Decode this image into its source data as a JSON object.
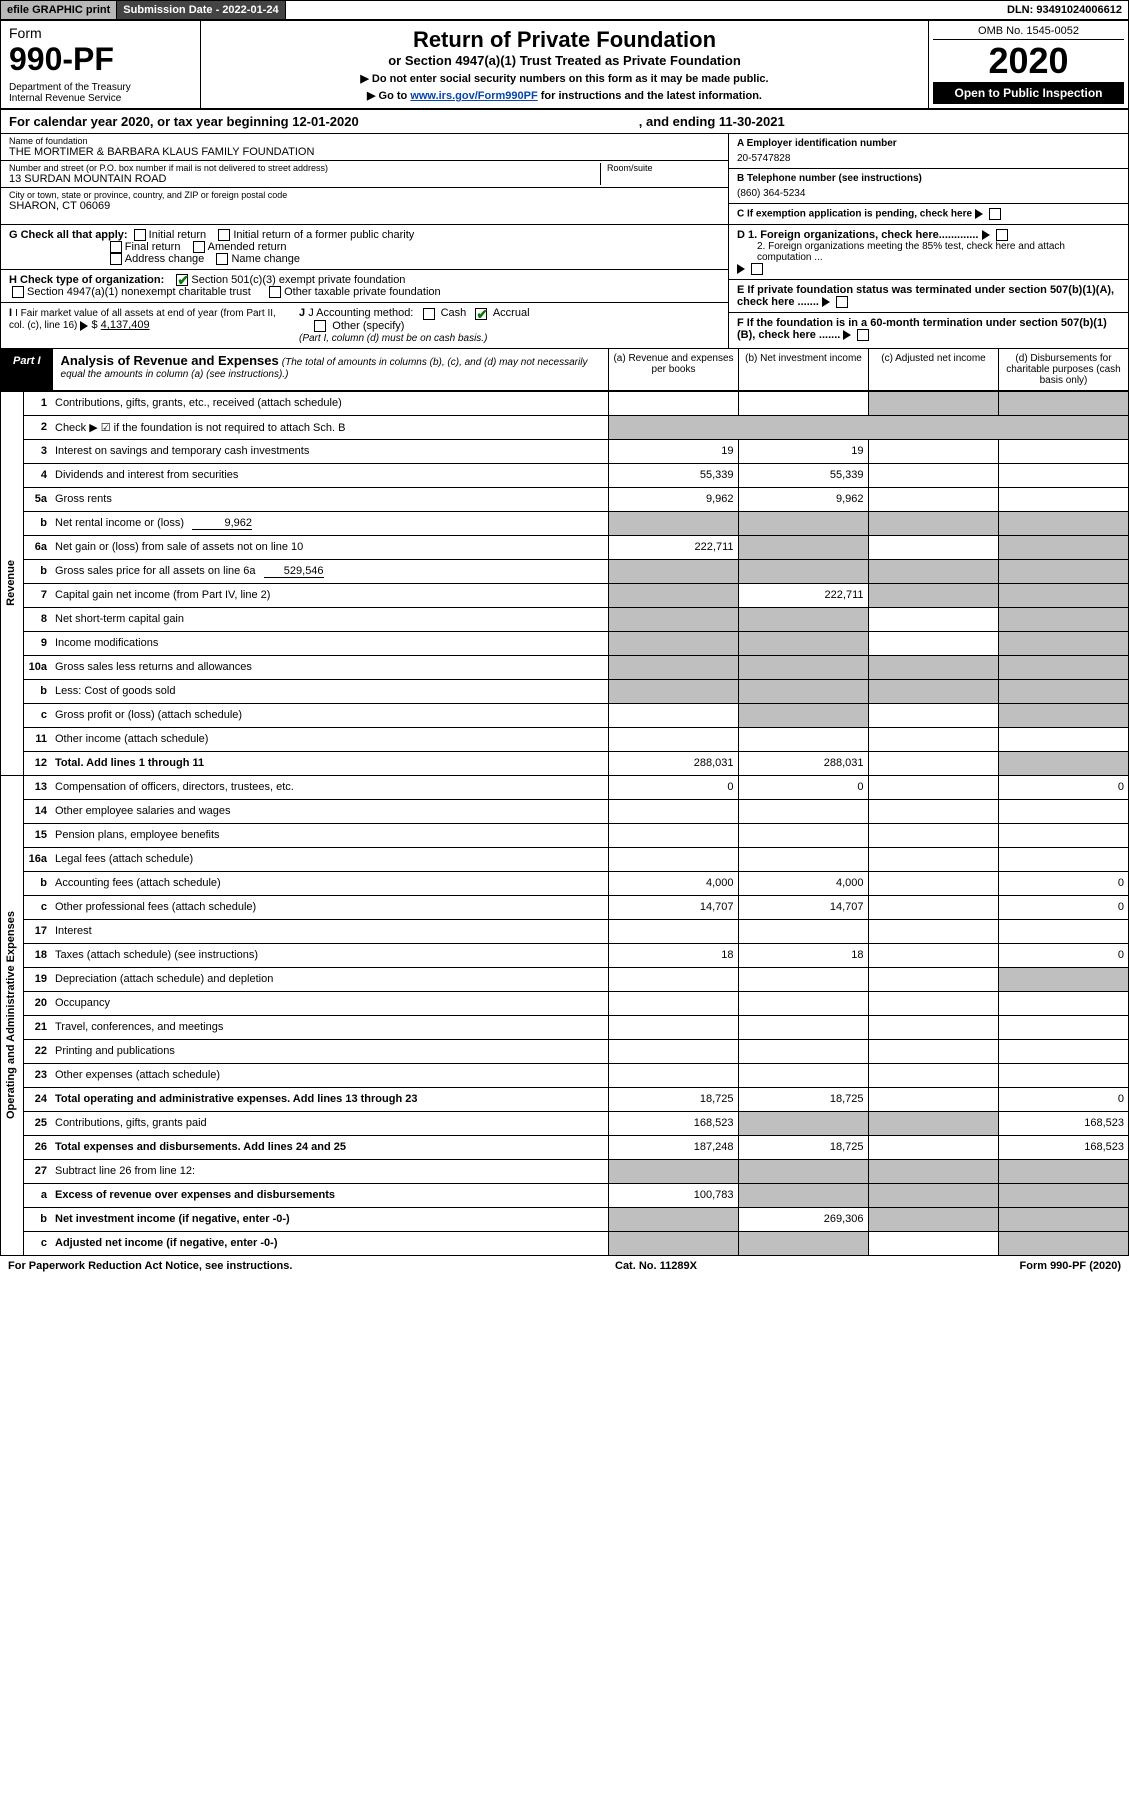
{
  "topbar": {
    "efile": "efile GRAPHIC print",
    "subdate": "Submission Date - 2022-01-24",
    "dln": "DLN: 93491024006612"
  },
  "header": {
    "form_label": "Form",
    "form_no": "990-PF",
    "dept1": "Department of the Treasury",
    "dept2": "Internal Revenue Service",
    "title": "Return of Private Foundation",
    "subtitle": "or Section 4947(a)(1) Trust Treated as Private Foundation",
    "note1": "▶ Do not enter social security numbers on this form as it may be made public.",
    "note2_pre": "▶ Go to ",
    "note2_link": "www.irs.gov/Form990PF",
    "note2_post": " for instructions and the latest information.",
    "omb": "OMB No. 1545-0052",
    "year": "2020",
    "open": "Open to Public Inspection"
  },
  "calyear": {
    "text": "For calendar year 2020, or tax year beginning 12-01-2020",
    "ending": ", and ending 11-30-2021"
  },
  "entity": {
    "name_lbl": "Name of foundation",
    "name": "THE MORTIMER & BARBARA KLAUS FAMILY FOUNDATION",
    "addr_lbl": "Number and street (or P.O. box number if mail is not delivered to street address)",
    "addr": "13 SURDAN MOUNTAIN ROAD",
    "room_lbl": "Room/suite",
    "city_lbl": "City or town, state or province, country, and ZIP or foreign postal code",
    "city": "SHARON, CT  06069",
    "ein_lbl": "A Employer identification number",
    "ein": "20-5747828",
    "phone_lbl": "B Telephone number (see instructions)",
    "phone": "(860) 364-5234",
    "c_lbl": "C If exemption application is pending, check here",
    "d1": "D 1. Foreign organizations, check here.............",
    "d2": "2. Foreign organizations meeting the 85% test, check here and attach computation ...",
    "e": "E  If private foundation status was terminated under section 507(b)(1)(A), check here .......",
    "f": "F  If the foundation is in a 60-month termination under section 507(b)(1)(B), check here .......",
    "g_lbl": "G Check all that apply:",
    "g_opts": [
      "Initial return",
      "Initial return of a former public charity",
      "Final return",
      "Amended return",
      "Address change",
      "Name change"
    ],
    "h_lbl": "H Check type of organization:",
    "h1": "Section 501(c)(3) exempt private foundation",
    "h2": "Section 4947(a)(1) nonexempt charitable trust",
    "h3": "Other taxable private foundation",
    "i_lbl": "I Fair market value of all assets at end of year (from Part II, col. (c), line 16)",
    "i_val": "4,137,409",
    "j_lbl": "J Accounting method:",
    "j_cash": "Cash",
    "j_accrual": "Accrual",
    "j_other": "Other (specify)",
    "j_note": "(Part I, column (d) must be on cash basis.)"
  },
  "part1": {
    "tab": "Part I",
    "title": "Analysis of Revenue and Expenses",
    "title_note": "(The total of amounts in columns (b), (c), and (d) may not necessarily equal the amounts in column (a) (see instructions).)",
    "cols": {
      "a": "(a) Revenue and expenses per books",
      "b": "(b) Net investment income",
      "c": "(c) Adjusted net income",
      "d": "(d) Disbursements for charitable purposes (cash basis only)"
    },
    "side_rev": "Revenue",
    "side_exp": "Operating and Administrative Expenses",
    "rows": [
      {
        "n": "1",
        "d": "Contributions, gifts, grants, etc., received (attach schedule)",
        "a": "",
        "b": "",
        "cg": true,
        "dg": true
      },
      {
        "n": "2",
        "d": "Check ▶ ☑ if the foundation is not required to attach Sch. B",
        "nodata": true
      },
      {
        "n": "3",
        "d": "Interest on savings and temporary cash investments",
        "a": "19",
        "b": "19"
      },
      {
        "n": "4",
        "d": "Dividends and interest from securities",
        "a": "55,339",
        "b": "55,339"
      },
      {
        "n": "5a",
        "d": "Gross rents",
        "a": "9,962",
        "b": "9,962"
      },
      {
        "n": "b",
        "d": "Net rental income or (loss)",
        "inline": "9,962",
        "ag": true,
        "bg": true,
        "cg": true,
        "dg": true
      },
      {
        "n": "6a",
        "d": "Net gain or (loss) from sale of assets not on line 10",
        "a": "222,711",
        "bg": true,
        "dg": true
      },
      {
        "n": "b",
        "d": "Gross sales price for all assets on line 6a",
        "inline": "529,546",
        "ag": true,
        "bg": true,
        "cg": true,
        "dg": true
      },
      {
        "n": "7",
        "d": "Capital gain net income (from Part IV, line 2)",
        "ag": true,
        "b": "222,711",
        "cg": true,
        "dg": true
      },
      {
        "n": "8",
        "d": "Net short-term capital gain",
        "ag": true,
        "bg": true,
        "dg": true
      },
      {
        "n": "9",
        "d": "Income modifications",
        "ag": true,
        "bg": true,
        "dg": true
      },
      {
        "n": "10a",
        "d": "Gross sales less returns and allowances",
        "ag": true,
        "bg": true,
        "cg": true,
        "dg": true
      },
      {
        "n": "b",
        "d": "Less: Cost of goods sold",
        "ag": true,
        "bg": true,
        "cg": true,
        "dg": true
      },
      {
        "n": "c",
        "d": "Gross profit or (loss) (attach schedule)",
        "bg": true,
        "dg": true
      },
      {
        "n": "11",
        "d": "Other income (attach schedule)"
      },
      {
        "n": "12",
        "d": "Total. Add lines 1 through 11",
        "bold": true,
        "a": "288,031",
        "b": "288,031",
        "dg": true
      },
      {
        "n": "13",
        "d": "Compensation of officers, directors, trustees, etc.",
        "a": "0",
        "b": "0",
        "dv": "0",
        "sec": "exp"
      },
      {
        "n": "14",
        "d": "Other employee salaries and wages"
      },
      {
        "n": "15",
        "d": "Pension plans, employee benefits"
      },
      {
        "n": "16a",
        "d": "Legal fees (attach schedule)"
      },
      {
        "n": "b",
        "d": "Accounting fees (attach schedule)",
        "a": "4,000",
        "b": "4,000",
        "dv": "0"
      },
      {
        "n": "c",
        "d": "Other professional fees (attach schedule)",
        "a": "14,707",
        "b": "14,707",
        "dv": "0"
      },
      {
        "n": "17",
        "d": "Interest"
      },
      {
        "n": "18",
        "d": "Taxes (attach schedule) (see instructions)",
        "a": "18",
        "b": "18",
        "dv": "0"
      },
      {
        "n": "19",
        "d": "Depreciation (attach schedule) and depletion",
        "dg": true
      },
      {
        "n": "20",
        "d": "Occupancy"
      },
      {
        "n": "21",
        "d": "Travel, conferences, and meetings"
      },
      {
        "n": "22",
        "d": "Printing and publications"
      },
      {
        "n": "23",
        "d": "Other expenses (attach schedule)"
      },
      {
        "n": "24",
        "d": "Total operating and administrative expenses. Add lines 13 through 23",
        "bold": true,
        "a": "18,725",
        "b": "18,725",
        "dv": "0"
      },
      {
        "n": "25",
        "d": "Contributions, gifts, grants paid",
        "a": "168,523",
        "bg": true,
        "cg": true,
        "dv": "168,523"
      },
      {
        "n": "26",
        "d": "Total expenses and disbursements. Add lines 24 and 25",
        "bold": true,
        "a": "187,248",
        "b": "18,725",
        "dv": "168,523"
      },
      {
        "n": "27",
        "d": "Subtract line 26 from line 12:",
        "ag": true,
        "bg": true,
        "cg": true,
        "dg": true
      },
      {
        "n": "a",
        "d": "Excess of revenue over expenses and disbursements",
        "bold": true,
        "a": "100,783",
        "bg": true,
        "cg": true,
        "dg": true
      },
      {
        "n": "b",
        "d": "Net investment income (if negative, enter -0-)",
        "bold": true,
        "ag": true,
        "b": "269,306",
        "cg": true,
        "dg": true
      },
      {
        "n": "c",
        "d": "Adjusted net income (if negative, enter -0-)",
        "bold": true,
        "ag": true,
        "bg": true,
        "dg": true
      }
    ]
  },
  "footer": {
    "left": "For Paperwork Reduction Act Notice, see instructions.",
    "mid": "Cat. No. 11289X",
    "right": "Form 990-PF (2020)"
  },
  "colors": {
    "gray_bg": "#bfbfbf",
    "header_gray": "#b8b8b8",
    "dark": "#444444",
    "link": "#0645ad",
    "check": "#0a7a0a"
  }
}
